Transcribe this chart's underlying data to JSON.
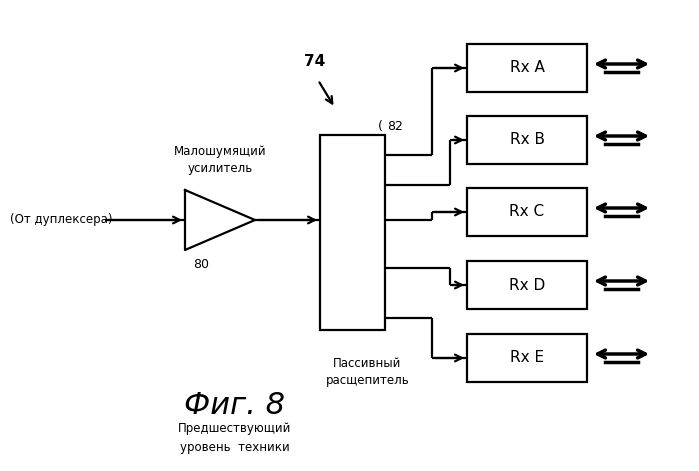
{
  "bg_color": "#ffffff",
  "title": "Фиг. 8",
  "subtitle": "Предшествующий\nуровень  техники",
  "input_label": "(От дуплексера)",
  "amp_label": "Малошумящий\nусилитель",
  "amp_number": "80",
  "splitter_label": "Пассивный\nрасщепитель",
  "splitter_number": "82",
  "signal_number": "74",
  "rx_labels": [
    "Rx A",
    "Rx B",
    "Rx C",
    "Rx D",
    "Rx E"
  ],
  "line_color": "#000000",
  "box_color": "#ffffff",
  "text_color": "#000000",
  "lw": 1.6
}
